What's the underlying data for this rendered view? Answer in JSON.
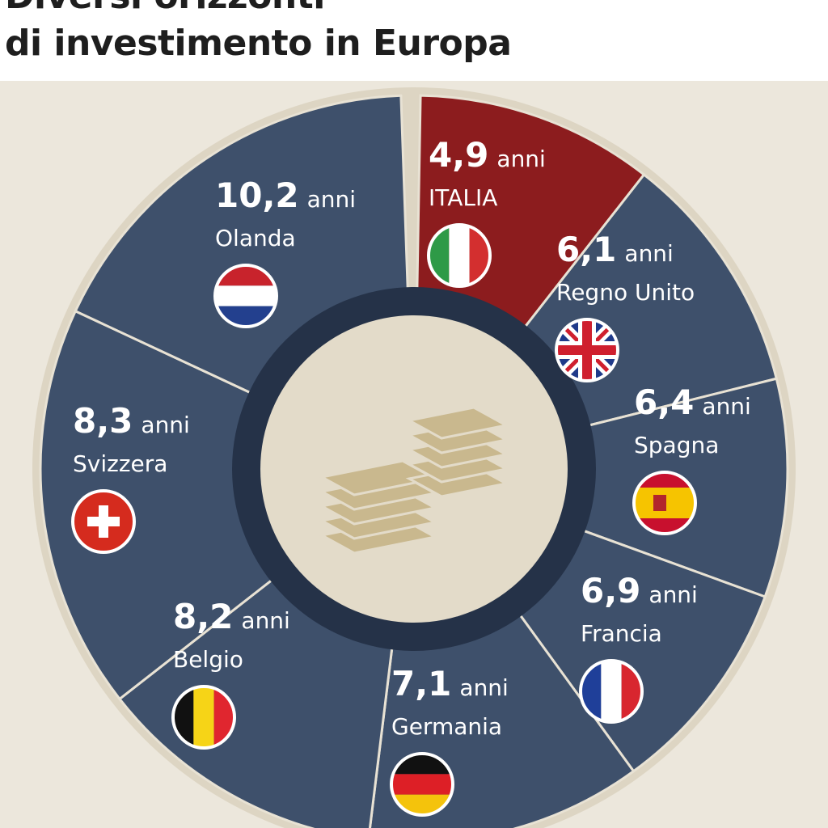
{
  "title": {
    "line1": "Diversi orizzonti",
    "line2": "di investimento in Europa"
  },
  "colors": {
    "segment": "#3e506b",
    "highlight": "#8c1c1e",
    "outer_ring": "#ddd5c3",
    "inner_ring": "#253248",
    "center": "#e3dbc9",
    "icon": "#c9b88e",
    "background": "#ece7dc"
  },
  "chart_data": {
    "type": "pie",
    "unit": "anni",
    "segments": [
      {
        "country": "ITALIA",
        "value": "4,9",
        "flag": "italy-flag-icon",
        "highlight": true
      },
      {
        "country": "Regno Unito",
        "value": "6,1",
        "flag": "uk-flag-icon",
        "highlight": false
      },
      {
        "country": "Spagna",
        "value": "6,4",
        "flag": "spain-flag-icon",
        "highlight": false
      },
      {
        "country": "Francia",
        "value": "6,9",
        "flag": "france-flag-icon",
        "highlight": false
      },
      {
        "country": "Germania",
        "value": "7,1",
        "flag": "germany-flag-icon",
        "highlight": false
      },
      {
        "country": "Belgio",
        "value": "8,2",
        "flag": "belgium-flag-icon",
        "highlight": false
      },
      {
        "country": "Svizzera",
        "value": "8,3",
        "flag": "switzerland-flag-icon",
        "highlight": false
      },
      {
        "country": "Olanda",
        "value": "10,2",
        "flag": "netherlands-flag-icon",
        "highlight": false
      }
    ]
  }
}
